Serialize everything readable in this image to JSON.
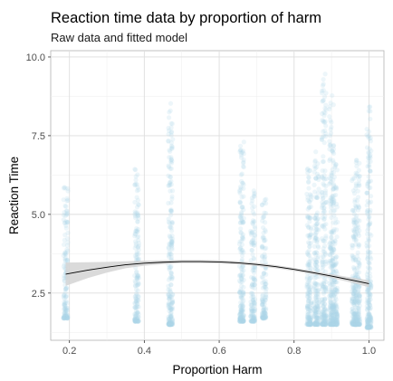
{
  "chart_data": {
    "type": "scatter",
    "title": "Reaction time data by proportion of harm",
    "subtitle": "Raw data and fitted model",
    "xlabel": "Proportion Harm",
    "ylabel": "Reaction Time",
    "xlim": [
      0.15,
      1.04
    ],
    "ylim": [
      1.0,
      10.2
    ],
    "x_ticks": [
      0.2,
      0.4,
      0.6,
      0.8,
      1.0
    ],
    "x_tick_labels": [
      "0.2",
      "0.4",
      "0.6",
      "0.8",
      "1.0"
    ],
    "y_ticks": [
      2.5,
      5.0,
      7.5,
      10.0
    ],
    "y_tick_labels": [
      "2.5",
      "5.0",
      "7.5",
      "10.0"
    ],
    "grid": true,
    "legend": "none",
    "point_color": "#ADD8E6",
    "fit_color": "#000000",
    "ribbon_color": "#D3D3D3",
    "raw_data_columns": [
      {
        "x": 0.19,
        "y_min": 1.7,
        "y_max": 5.9,
        "n": 150
      },
      {
        "x": 0.38,
        "y_min": 1.6,
        "y_max": 6.5,
        "n": 170
      },
      {
        "x": 0.47,
        "y_min": 1.5,
        "y_max": 8.6,
        "n": 230
      },
      {
        "x": 0.66,
        "y_min": 1.6,
        "y_max": 7.3,
        "n": 210
      },
      {
        "x": 0.69,
        "y_min": 1.6,
        "y_max": 5.8,
        "n": 150
      },
      {
        "x": 0.72,
        "y_min": 1.7,
        "y_max": 5.6,
        "n": 130
      },
      {
        "x": 0.84,
        "y_min": 1.5,
        "y_max": 6.5,
        "n": 190
      },
      {
        "x": 0.86,
        "y_min": 1.5,
        "y_max": 7.0,
        "n": 200
      },
      {
        "x": 0.88,
        "y_min": 1.5,
        "y_max": 9.6,
        "n": 220
      },
      {
        "x": 0.9,
        "y_min": 1.5,
        "y_max": 8.8,
        "n": 220
      },
      {
        "x": 0.91,
        "y_min": 1.5,
        "y_max": 6.6,
        "n": 170
      },
      {
        "x": 0.96,
        "y_min": 1.5,
        "y_max": 6.3,
        "n": 170
      },
      {
        "x": 0.97,
        "y_min": 1.5,
        "y_max": 6.8,
        "n": 170
      },
      {
        "x": 1.0,
        "y_min": 1.4,
        "y_max": 8.5,
        "n": 230
      }
    ],
    "fitted_curve": [
      {
        "x": 0.19,
        "y": 3.1,
        "lower": 2.73,
        "upper": 3.47
      },
      {
        "x": 0.25,
        "y": 3.23,
        "lower": 2.98,
        "upper": 3.48
      },
      {
        "x": 0.3,
        "y": 3.32,
        "lower": 3.15,
        "upper": 3.49
      },
      {
        "x": 0.35,
        "y": 3.4,
        "lower": 3.29,
        "upper": 3.51
      },
      {
        "x": 0.4,
        "y": 3.45,
        "lower": 3.37,
        "upper": 3.53
      },
      {
        "x": 0.45,
        "y": 3.48,
        "lower": 3.42,
        "upper": 3.54
      },
      {
        "x": 0.5,
        "y": 3.5,
        "lower": 3.45,
        "upper": 3.55
      },
      {
        "x": 0.55,
        "y": 3.5,
        "lower": 3.45,
        "upper": 3.55
      },
      {
        "x": 0.6,
        "y": 3.49,
        "lower": 3.44,
        "upper": 3.54
      },
      {
        "x": 0.65,
        "y": 3.46,
        "lower": 3.41,
        "upper": 3.51
      },
      {
        "x": 0.7,
        "y": 3.41,
        "lower": 3.36,
        "upper": 3.46
      },
      {
        "x": 0.75,
        "y": 3.34,
        "lower": 3.29,
        "upper": 3.39
      },
      {
        "x": 0.8,
        "y": 3.25,
        "lower": 3.2,
        "upper": 3.3
      },
      {
        "x": 0.85,
        "y": 3.15,
        "lower": 3.1,
        "upper": 3.2
      },
      {
        "x": 0.9,
        "y": 3.04,
        "lower": 2.98,
        "upper": 3.1
      },
      {
        "x": 0.95,
        "y": 2.92,
        "lower": 2.84,
        "upper": 3.0
      },
      {
        "x": 1.0,
        "y": 2.8,
        "lower": 2.69,
        "upper": 2.91
      }
    ]
  }
}
